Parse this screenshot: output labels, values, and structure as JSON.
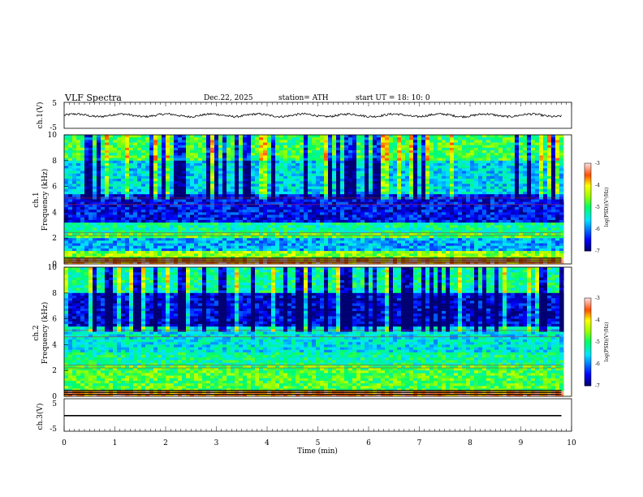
{
  "header": {
    "title": "VLF  Spectra",
    "date": "Dec.22, 2025",
    "station": "station= ATH",
    "start": "start  UT  =    18: 10: 0"
  },
  "chart_data": [
    {
      "type": "line",
      "name": "ch1-waveform",
      "ylabel": "ch.1(V)",
      "xlim": [
        0,
        10
      ],
      "ylim": [
        -5,
        5
      ],
      "yticks": [
        "5",
        "-5"
      ],
      "data_end_min": 9.8,
      "baseline_v": 0.0,
      "amplitude_v": 1.0
    },
    {
      "type": "heatmap",
      "name": "ch1-spectrogram",
      "ylabel": "ch.1\nFrequency  (kHz)",
      "ylabel_line1": "ch.1",
      "ylabel_line2": "Frequency  (kHz)",
      "xlim": [
        0,
        10
      ],
      "ylim": [
        0,
        10
      ],
      "yticks": [
        "0",
        "2",
        "4",
        "6",
        "8",
        "10"
      ],
      "colorbar": {
        "label": "log(PSD)(V²/Hz)",
        "range": [
          -7,
          -3
        ],
        "ticks": [
          "-3",
          "-4",
          "-5",
          "-6",
          "-7"
        ]
      },
      "bands_khz": [
        {
          "from": 0.0,
          "to": 0.5,
          "level": -3.5
        },
        {
          "from": 0.5,
          "to": 1.0,
          "level": -4.5
        },
        {
          "from": 1.0,
          "to": 2.0,
          "level": -5.8
        },
        {
          "from": 2.0,
          "to": 2.5,
          "level": -4.8
        },
        {
          "from": 2.5,
          "to": 3.3,
          "level": -5.2
        },
        {
          "from": 3.3,
          "to": 5.5,
          "level": -6.5
        },
        {
          "from": 5.5,
          "to": 8.0,
          "level": -5.6
        },
        {
          "from": 8.0,
          "to": 10.0,
          "level": -4.9
        }
      ]
    },
    {
      "type": "heatmap",
      "name": "ch2-spectrogram",
      "ylabel": "ch.2\nFrequency  (kHz)",
      "ylabel_line1": "ch.2",
      "ylabel_line2": "Frequency  (kHz)",
      "xlim": [
        0,
        10
      ],
      "ylim": [
        0,
        10
      ],
      "yticks": [
        "0",
        "2",
        "4",
        "6",
        "8",
        "10"
      ],
      "colorbar": {
        "label": "log(PSD)(V²/Hz)",
        "range": [
          -7,
          -3
        ],
        "ticks": [
          "-3",
          "-4",
          "-5",
          "-6",
          "-7"
        ]
      },
      "bands_khz": [
        {
          "from": 0.0,
          "to": 0.5,
          "level": -3.5
        },
        {
          "from": 0.5,
          "to": 2.5,
          "level": -4.8
        },
        {
          "from": 2.5,
          "to": 3.5,
          "level": -5.2
        },
        {
          "from": 3.5,
          "to": 5.5,
          "level": -5.5
        },
        {
          "from": 5.5,
          "to": 8.0,
          "level": -6.6
        },
        {
          "from": 8.0,
          "to": 10.0,
          "level": -5.2
        }
      ]
    },
    {
      "type": "line",
      "name": "ch3-waveform",
      "ylabel": "ch.3(V)",
      "xlabel": "Time  (min)",
      "xlim": [
        0,
        10
      ],
      "ylim": [
        -5,
        5
      ],
      "xticks": [
        "0",
        "1",
        "2",
        "3",
        "4",
        "5",
        "6",
        "7",
        "8",
        "9",
        "10"
      ],
      "yticks": [
        "5",
        "-5"
      ],
      "data_end_min": 9.8,
      "baseline_v": -0.2,
      "amplitude_v": 0.2
    }
  ]
}
